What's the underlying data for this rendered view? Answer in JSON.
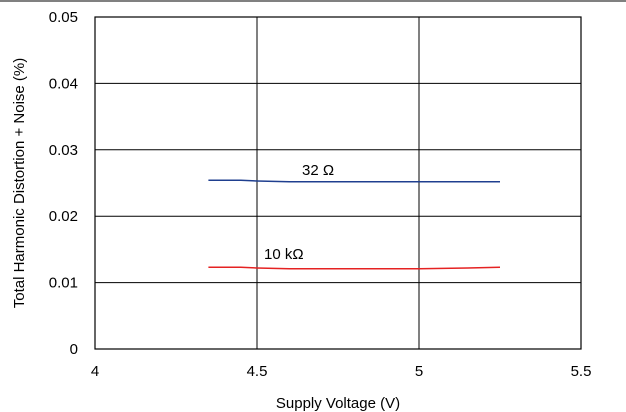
{
  "chart_data": {
    "type": "line",
    "xlabel": "Supply Voltage (V)",
    "ylabel": "Total Harmonic Distortion + Noise (%)",
    "xlim": [
      4,
      5.5
    ],
    "ylim": [
      0,
      0.05
    ],
    "xticks": [
      4,
      4.5,
      5,
      5.5
    ],
    "xtick_labels": [
      "4",
      "4.5",
      "5",
      "5.5"
    ],
    "yticks": [
      0,
      0.01,
      0.02,
      0.03,
      0.04,
      0.05
    ],
    "ytick_labels": [
      "0",
      "0.01",
      "0.02",
      "0.03",
      "0.04",
      "0.05"
    ],
    "grid": true,
    "series": [
      {
        "name": "32 Ω",
        "color": "#1f3f8f",
        "x": [
          4.35,
          4.45,
          4.5,
          4.6,
          4.8,
          5.0,
          5.25
        ],
        "y": [
          0.0254,
          0.0254,
          0.0253,
          0.0252,
          0.0252,
          0.0252,
          0.0252
        ]
      },
      {
        "name": "10 kΩ",
        "color": "#e52222",
        "x": [
          4.35,
          4.45,
          4.5,
          4.6,
          4.8,
          5.0,
          5.15,
          5.25
        ],
        "y": [
          0.0123,
          0.0123,
          0.0122,
          0.0121,
          0.0121,
          0.0121,
          0.0122,
          0.0123
        ]
      }
    ]
  }
}
